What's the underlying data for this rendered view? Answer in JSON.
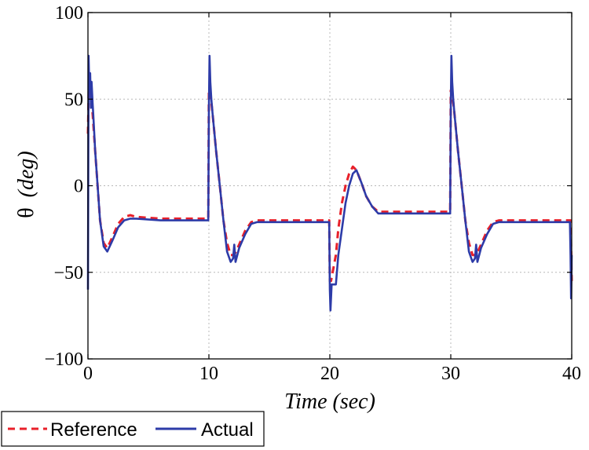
{
  "chart_data": {
    "type": "line",
    "title": "",
    "xlabel": "Time (sec)",
    "ylabel_symbol": "θ",
    "ylabel_unit": "(deg)",
    "xlim": [
      0,
      40
    ],
    "ylim": [
      -100,
      100
    ],
    "xticks": [
      0,
      10,
      20,
      30,
      40
    ],
    "xtick_labels": [
      "0",
      "10",
      "20",
      "30",
      "40"
    ],
    "yticks": [
      100,
      50,
      0,
      -50,
      -100
    ],
    "ytick_labels": [
      "100",
      "50",
      "0",
      "−50",
      "−100"
    ],
    "grid": true,
    "legend_position": "bottom-left",
    "series": [
      {
        "name": "Reference",
        "style": "dashed",
        "color": "#e8202a",
        "x": [
          0,
          0.08,
          0.25,
          0.4,
          0.6,
          0.8,
          1.0,
          1.3,
          1.6,
          2.0,
          2.5,
          3.0,
          3.5,
          4,
          6,
          8,
          9.95,
          10.0,
          10.1,
          10.3,
          10.6,
          10.9,
          11.2,
          11.5,
          11.8,
          12.1,
          12.5,
          13.0,
          13.5,
          14.0,
          14.5,
          15,
          17,
          19.95,
          20.0,
          20.1,
          20.5,
          20.7,
          21.0,
          21.3,
          21.6,
          21.9,
          22.2,
          22.6,
          23.0,
          23.5,
          24.0,
          24.5,
          25,
          27,
          29.95,
          30.0,
          30.1,
          30.3,
          30.6,
          30.9,
          31.2,
          31.5,
          31.8,
          32.1,
          32.5,
          33.0,
          33.5,
          34.0,
          34.5,
          35,
          37,
          39.9,
          40.0
        ],
        "y": [
          30,
          60,
          55,
          40,
          20,
          0,
          -20,
          -33,
          -36,
          -30,
          -22,
          -18,
          -17,
          -18,
          -19,
          -19,
          -19,
          55,
          55,
          42,
          20,
          0,
          -20,
          -33,
          -40,
          -40,
          -34,
          -26,
          -21,
          -20,
          -20,
          -20,
          -20,
          -20,
          -55,
          -55,
          -40,
          -25,
          -10,
          0,
          7,
          11,
          9,
          2,
          -6,
          -12,
          -15,
          -15,
          -15,
          -15,
          -15,
          55,
          55,
          42,
          20,
          0,
          -20,
          -33,
          -40,
          -40,
          -34,
          -26,
          -21,
          -20,
          -20,
          -20,
          -20,
          -20,
          -55
        ]
      },
      {
        "name": "Actual",
        "style": "solid",
        "color": "#2d3ba8",
        "x": [
          0,
          0.05,
          0.12,
          0.18,
          0.25,
          0.3,
          0.38,
          0.45,
          0.6,
          0.8,
          1.0,
          1.3,
          1.6,
          2.0,
          2.5,
          3.0,
          3.5,
          4,
          6,
          8,
          9.95,
          10.0,
          10.05,
          10.12,
          10.2,
          10.3,
          10.6,
          10.9,
          11.2,
          11.5,
          11.8,
          12.0,
          12.1,
          12.2,
          12.5,
          13.0,
          13.5,
          14.0,
          14.5,
          15,
          17,
          19.95,
          20.0,
          20.05,
          20.15,
          20.3,
          20.5,
          20.7,
          21.0,
          21.3,
          21.6,
          21.9,
          22.2,
          22.6,
          23.0,
          23.5,
          24.0,
          24.5,
          25,
          27,
          29.95,
          30.0,
          30.05,
          30.12,
          30.2,
          30.3,
          30.6,
          30.9,
          31.2,
          31.5,
          31.8,
          32.0,
          32.1,
          32.2,
          32.5,
          33.0,
          33.5,
          34.0,
          34.5,
          35,
          37,
          39.85,
          39.9,
          39.95,
          40.0
        ],
        "y": [
          -60,
          75,
          55,
          65,
          45,
          60,
          48,
          40,
          20,
          0,
          -20,
          -35,
          -38,
          -32,
          -24,
          -20,
          -19,
          -19,
          -20,
          -20,
          -20,
          45,
          75,
          60,
          50,
          42,
          20,
          0,
          -20,
          -38,
          -44,
          -42,
          -34,
          -44,
          -36,
          -28,
          -22,
          -21,
          -21,
          -21,
          -21,
          -21,
          -60,
          -72,
          -57,
          -57,
          -57,
          -40,
          -25,
          -10,
          0,
          7,
          9,
          2,
          -6,
          -12,
          -16,
          -16,
          -16,
          -16,
          -16,
          45,
          75,
          60,
          50,
          42,
          20,
          0,
          -20,
          -38,
          -44,
          -42,
          -34,
          -44,
          -36,
          -28,
          -22,
          -21,
          -21,
          -21,
          -21,
          -21,
          -40,
          -65,
          -40
        ]
      }
    ]
  }
}
